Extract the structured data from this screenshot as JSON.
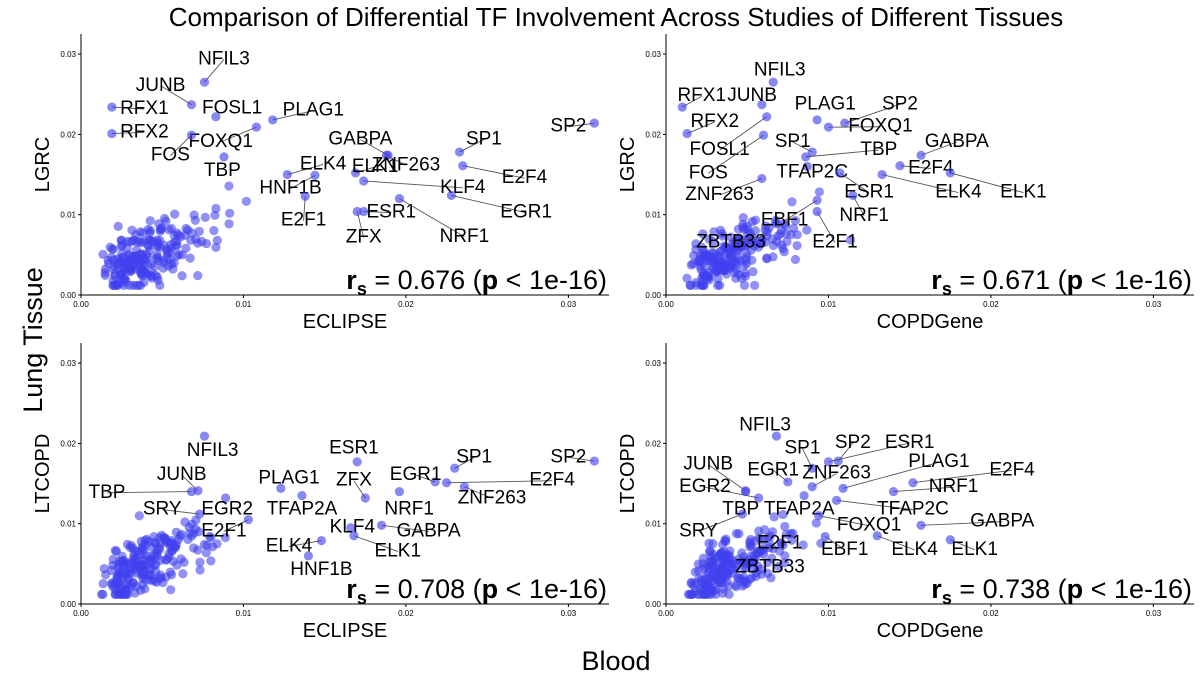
{
  "title": "Comparison of Differential TF Involvement Across Studies of Different Tissues",
  "shared_ylabel": "Lung Tissue",
  "shared_xlabel": "Blood",
  "colors": {
    "point": "#3f3fee",
    "axis": "#000000",
    "label_line": "#555555"
  },
  "chart_data": [
    {
      "type": "scatter",
      "xlabel": "ECLIPSE",
      "ylabel": "LGRC",
      "xlim": [
        0,
        0.0325
      ],
      "ylim": [
        0,
        0.0325
      ],
      "xticks": [
        "0.00",
        "0.01",
        "0.02",
        "0.03"
      ],
      "yticks": [
        "0.00",
        "0.01",
        "0.02",
        "0.03"
      ],
      "stat_r": "0.676",
      "stat_p": "1e-16",
      "labeled_points": [
        {
          "name": "NFIL3",
          "x": 0.0076,
          "y": 0.0265,
          "lx": 0.0088,
          "ly": 0.0296
        },
        {
          "name": "JUNB",
          "x": 0.0068,
          "y": 0.0237,
          "lx": 0.0049,
          "ly": 0.0263
        },
        {
          "name": "RFX1",
          "x": 0.0019,
          "y": 0.0234,
          "lx": 0.0039,
          "ly": 0.0234
        },
        {
          "name": "FOSL1",
          "x": 0.0083,
          "y": 0.0222,
          "lx": 0.0093,
          "ly": 0.0235
        },
        {
          "name": "PLAG1",
          "x": 0.0118,
          "y": 0.0218,
          "lx": 0.0143,
          "ly": 0.0232
        },
        {
          "name": "RFX2",
          "x": 0.0019,
          "y": 0.0201,
          "lx": 0.0039,
          "ly": 0.0205
        },
        {
          "name": "FOXQ1",
          "x": 0.0108,
          "y": 0.0209,
          "lx": 0.0086,
          "ly": 0.0193
        },
        {
          "name": "FOS",
          "x": 0.0068,
          "y": 0.0199,
          "lx": 0.0055,
          "ly": 0.0176
        },
        {
          "name": "TBP",
          "x": 0.0088,
          "y": 0.0172,
          "lx": 0.0087,
          "ly": 0.0157
        },
        {
          "name": "GABPA",
          "x": 0.0189,
          "y": 0.0174,
          "lx": 0.0172,
          "ly": 0.0196
        },
        {
          "name": "SP1",
          "x": 0.0233,
          "y": 0.0178,
          "lx": 0.0248,
          "ly": 0.0196
        },
        {
          "name": "SP2",
          "x": 0.0316,
          "y": 0.0214,
          "lx": 0.03,
          "ly": 0.0212
        },
        {
          "name": "ELK4",
          "x": 0.0127,
          "y": 0.015,
          "lx": 0.0149,
          "ly": 0.0165
        },
        {
          "name": "ELK1",
          "x": 0.0169,
          "y": 0.0152,
          "lx": 0.0181,
          "ly": 0.0162
        },
        {
          "name": "ZNF263",
          "x": 0.0188,
          "y": 0.0174,
          "lx": 0.02,
          "ly": 0.0164
        },
        {
          "name": "E2F4",
          "x": 0.0235,
          "y": 0.0161,
          "lx": 0.0273,
          "ly": 0.0148
        },
        {
          "name": "HNF1B",
          "x": 0.0144,
          "y": 0.0149,
          "lx": 0.0129,
          "ly": 0.0135
        },
        {
          "name": "KLF4",
          "x": 0.0174,
          "y": 0.0142,
          "lx": 0.0235,
          "ly": 0.0136
        },
        {
          "name": "E2F1",
          "x": 0.0138,
          "y": 0.0123,
          "lx": 0.0137,
          "ly": 0.0095
        },
        {
          "name": "ESR1",
          "x": 0.0174,
          "y": 0.0104,
          "lx": 0.0191,
          "ly": 0.0105
        },
        {
          "name": "EGR1",
          "x": 0.0228,
          "y": 0.0124,
          "lx": 0.0274,
          "ly": 0.0105
        },
        {
          "name": "ZFX",
          "x": 0.017,
          "y": 0.0104,
          "lx": 0.0174,
          "ly": 0.0074
        },
        {
          "name": "NRF1",
          "x": 0.0196,
          "y": 0.012,
          "lx": 0.0236,
          "ly": 0.0075
        }
      ]
    },
    {
      "type": "scatter",
      "xlabel": "COPDGene",
      "ylabel": "LGRC",
      "xlim": [
        0,
        0.0325
      ],
      "ylim": [
        0,
        0.0325
      ],
      "xticks": [
        "0.00",
        "0.01",
        "0.02",
        "0.03"
      ],
      "yticks": [
        "0.00",
        "0.01",
        "0.02",
        "0.03"
      ],
      "stat_r": "0.671",
      "stat_p": "1e-16",
      "labeled_points": [
        {
          "name": "NFIL3",
          "x": 0.0066,
          "y": 0.0265,
          "lx": 0.007,
          "ly": 0.0282
        },
        {
          "name": "RFX1",
          "x": 0.001,
          "y": 0.0234,
          "lx": 0.0022,
          "ly": 0.025
        },
        {
          "name": "JUNB",
          "x": 0.0059,
          "y": 0.0237,
          "lx": 0.0053,
          "ly": 0.025
        },
        {
          "name": "PLAG1",
          "x": 0.0093,
          "y": 0.0218,
          "lx": 0.0098,
          "ly": 0.024
        },
        {
          "name": "SP2",
          "x": 0.011,
          "y": 0.0214,
          "lx": 0.0144,
          "ly": 0.024
        },
        {
          "name": "RFX2",
          "x": 0.0013,
          "y": 0.0201,
          "lx": 0.003,
          "ly": 0.0218
        },
        {
          "name": "FOXQ1",
          "x": 0.01,
          "y": 0.0209,
          "lx": 0.0132,
          "ly": 0.0212
        },
        {
          "name": "FOSL1",
          "x": 0.0062,
          "y": 0.0222,
          "lx": 0.0033,
          "ly": 0.0183
        },
        {
          "name": "SP1",
          "x": 0.009,
          "y": 0.0178,
          "lx": 0.0078,
          "ly": 0.0193
        },
        {
          "name": "GABPA",
          "x": 0.0157,
          "y": 0.0174,
          "lx": 0.0179,
          "ly": 0.0193
        },
        {
          "name": "TBP",
          "x": 0.0086,
          "y": 0.0172,
          "lx": 0.0131,
          "ly": 0.0183
        },
        {
          "name": "FOS",
          "x": 0.006,
          "y": 0.0199,
          "lx": 0.0026,
          "ly": 0.0154
        },
        {
          "name": "TFAP2C",
          "x": 0.0087,
          "y": 0.016,
          "lx": 0.009,
          "ly": 0.0155
        },
        {
          "name": "E2F4",
          "x": 0.0144,
          "y": 0.0161,
          "lx": 0.0163,
          "ly": 0.016
        },
        {
          "name": "ZNF263",
          "x": 0.0059,
          "y": 0.0145,
          "lx": 0.0033,
          "ly": 0.0127
        },
        {
          "name": "ESR1",
          "x": 0.0107,
          "y": 0.0152,
          "lx": 0.0125,
          "ly": 0.013
        },
        {
          "name": "ELK4",
          "x": 0.0133,
          "y": 0.015,
          "lx": 0.018,
          "ly": 0.013
        },
        {
          "name": "ELK1",
          "x": 0.0175,
          "y": 0.0152,
          "lx": 0.022,
          "ly": 0.013
        },
        {
          "name": "EBF1",
          "x": 0.0093,
          "y": 0.0118,
          "lx": 0.0073,
          "ly": 0.0095
        },
        {
          "name": "NRF1",
          "x": 0.0115,
          "y": 0.0124,
          "lx": 0.0122,
          "ly": 0.0101
        },
        {
          "name": "E2F1",
          "x": 0.0093,
          "y": 0.0104,
          "lx": 0.0104,
          "ly": 0.0068
        },
        {
          "name": "ZBTB33",
          "x": 0.0062,
          "y": 0.0074,
          "lx": 0.004,
          "ly": 0.0068
        }
      ]
    },
    {
      "type": "scatter",
      "xlabel": "ECLIPSE",
      "ylabel": "LTCOPD",
      "xlim": [
        0,
        0.0325
      ],
      "ylim": [
        0,
        0.0325
      ],
      "xticks": [
        "0.00",
        "0.01",
        "0.02",
        "0.03"
      ],
      "yticks": [
        "0.00",
        "0.01",
        "0.02",
        "0.03"
      ],
      "stat_r": "0.708",
      "stat_p": "1e-16",
      "labeled_points": [
        {
          "name": "NFIL3",
          "x": 0.0076,
          "y": 0.0209,
          "lx": 0.0081,
          "ly": 0.0193
        },
        {
          "name": "ESR1",
          "x": 0.017,
          "y": 0.0177,
          "lx": 0.0168,
          "ly": 0.0196
        },
        {
          "name": "SP1",
          "x": 0.023,
          "y": 0.0169,
          "lx": 0.0242,
          "ly": 0.0185
        },
        {
          "name": "SP2",
          "x": 0.0316,
          "y": 0.0178,
          "lx": 0.03,
          "ly": 0.0185
        },
        {
          "name": "JUNB",
          "x": 0.0072,
          "y": 0.0141,
          "lx": 0.0062,
          "ly": 0.0163
        },
        {
          "name": "ZFX",
          "x": 0.0175,
          "y": 0.0132,
          "lx": 0.0168,
          "ly": 0.0156
        },
        {
          "name": "PLAG1",
          "x": 0.0123,
          "y": 0.0144,
          "lx": 0.0128,
          "ly": 0.0159
        },
        {
          "name": "EGR1",
          "x": 0.0218,
          "y": 0.0152,
          "lx": 0.0206,
          "ly": 0.0163
        },
        {
          "name": "E2F4",
          "x": 0.0225,
          "y": 0.0151,
          "lx": 0.029,
          "ly": 0.0156
        },
        {
          "name": "TBP",
          "x": 0.0068,
          "y": 0.014,
          "lx": 0.0016,
          "ly": 0.0141
        },
        {
          "name": "ZNF263",
          "x": 0.0236,
          "y": 0.0146,
          "lx": 0.0253,
          "ly": 0.0134
        },
        {
          "name": "NRF1",
          "x": 0.0196,
          "y": 0.014,
          "lx": 0.0202,
          "ly": 0.012
        },
        {
          "name": "SRY",
          "x": 0.0073,
          "y": 0.0112,
          "lx": 0.005,
          "ly": 0.012
        },
        {
          "name": "EGR2",
          "x": 0.0089,
          "y": 0.0132,
          "lx": 0.009,
          "ly": 0.012
        },
        {
          "name": "TFAP2A",
          "x": 0.0136,
          "y": 0.0135,
          "lx": 0.0136,
          "ly": 0.012
        },
        {
          "name": "E2F1",
          "x": 0.0103,
          "y": 0.0105,
          "lx": 0.0088,
          "ly": 0.0093
        },
        {
          "name": "KLF4",
          "x": 0.0166,
          "y": 0.0095,
          "lx": 0.0167,
          "ly": 0.0098
        },
        {
          "name": "GABPA",
          "x": 0.0185,
          "y": 0.0098,
          "lx": 0.0214,
          "ly": 0.0093
        },
        {
          "name": "ELK4",
          "x": 0.0148,
          "y": 0.0079,
          "lx": 0.0128,
          "ly": 0.0074
        },
        {
          "name": "ELK1",
          "x": 0.0168,
          "y": 0.0085,
          "lx": 0.0195,
          "ly": 0.0068
        },
        {
          "name": "HNF1B",
          "x": 0.014,
          "y": 0.006,
          "lx": 0.0148,
          "ly": 0.0045
        }
      ]
    },
    {
      "type": "scatter",
      "xlabel": "COPDGene",
      "ylabel": "LTCOPD",
      "xlim": [
        0,
        0.0325
      ],
      "ylim": [
        0,
        0.0325
      ],
      "xticks": [
        "0.00",
        "0.01",
        "0.02",
        "0.03"
      ],
      "yticks": [
        "0.00",
        "0.01",
        "0.02",
        "0.03"
      ],
      "stat_r": "0.738",
      "stat_p": "1e-16",
      "labeled_points": [
        {
          "name": "NFIL3",
          "x": 0.0068,
          "y": 0.0209,
          "lx": 0.0061,
          "ly": 0.0225
        },
        {
          "name": "SP1",
          "x": 0.009,
          "y": 0.0169,
          "lx": 0.0084,
          "ly": 0.0196
        },
        {
          "name": "SP2",
          "x": 0.0106,
          "y": 0.0178,
          "lx": 0.0115,
          "ly": 0.0203
        },
        {
          "name": "ESR1",
          "x": 0.01,
          "y": 0.0177,
          "lx": 0.015,
          "ly": 0.0203
        },
        {
          "name": "JUNB",
          "x": 0.0049,
          "y": 0.0141,
          "lx": 0.0026,
          "ly": 0.0176
        },
        {
          "name": "EGR1",
          "x": 0.0075,
          "y": 0.0152,
          "lx": 0.0066,
          "ly": 0.0169
        },
        {
          "name": "ZNF263",
          "x": 0.009,
          "y": 0.0146,
          "lx": 0.0105,
          "ly": 0.0165
        },
        {
          "name": "PLAG1",
          "x": 0.0109,
          "y": 0.0144,
          "lx": 0.0168,
          "ly": 0.0179
        },
        {
          "name": "E2F4",
          "x": 0.0152,
          "y": 0.0151,
          "lx": 0.0213,
          "ly": 0.0169
        },
        {
          "name": "EGR2",
          "x": 0.0057,
          "y": 0.0132,
          "lx": 0.0024,
          "ly": 0.0148
        },
        {
          "name": "NRF1",
          "x": 0.014,
          "y": 0.014,
          "lx": 0.0177,
          "ly": 0.0148
        },
        {
          "name": "TBP",
          "x": 0.0049,
          "y": 0.014,
          "lx": 0.0046,
          "ly": 0.012
        },
        {
          "name": "TFAP2A",
          "x": 0.0085,
          "y": 0.0135,
          "lx": 0.0082,
          "ly": 0.012
        },
        {
          "name": "TFAP2C",
          "x": 0.0105,
          "y": 0.0129,
          "lx": 0.0152,
          "ly": 0.012
        },
        {
          "name": "SRY",
          "x": 0.0047,
          "y": 0.0112,
          "lx": 0.002,
          "ly": 0.0093
        },
        {
          "name": "FOXQ1",
          "x": 0.0094,
          "y": 0.011,
          "lx": 0.0125,
          "ly": 0.01
        },
        {
          "name": "GABPA",
          "x": 0.0157,
          "y": 0.0098,
          "lx": 0.0207,
          "ly": 0.0105
        },
        {
          "name": "E2F1",
          "x": 0.0078,
          "y": 0.0088,
          "lx": 0.007,
          "ly": 0.0078
        },
        {
          "name": "EBF1",
          "x": 0.0098,
          "y": 0.0084,
          "lx": 0.011,
          "ly": 0.007
        },
        {
          "name": "ELK4",
          "x": 0.013,
          "y": 0.0085,
          "lx": 0.0153,
          "ly": 0.007
        },
        {
          "name": "ELK1",
          "x": 0.0175,
          "y": 0.008,
          "lx": 0.019,
          "ly": 0.007
        },
        {
          "name": "ZBTB33",
          "x": 0.006,
          "y": 0.0062,
          "lx": 0.0064,
          "ly": 0.0048
        }
      ]
    }
  ]
}
